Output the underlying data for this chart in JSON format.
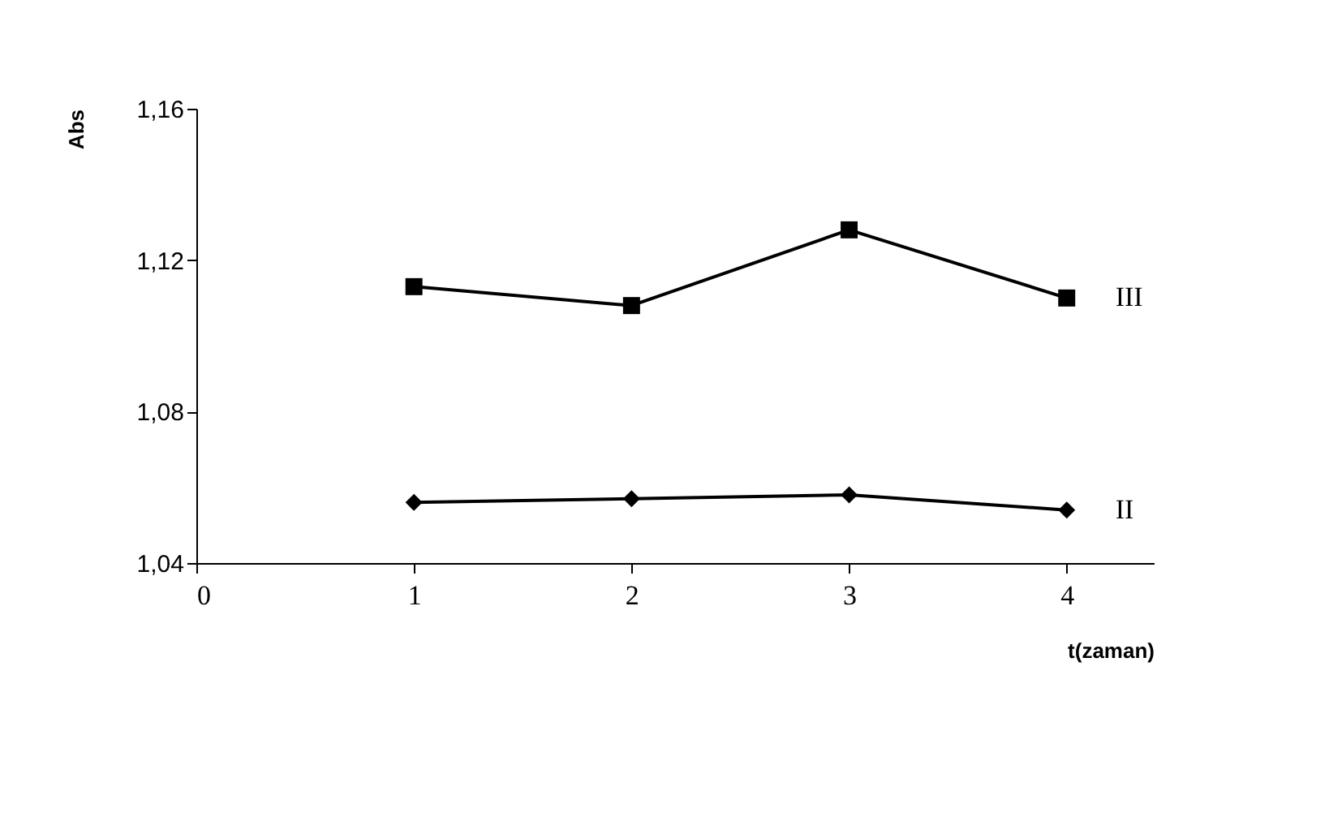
{
  "chart_data": {
    "type": "line",
    "xlabel": "t(zaman)",
    "ylabel": "Abs",
    "x": [
      1,
      2,
      3,
      4
    ],
    "series": [
      {
        "name": "III",
        "color": "#000000",
        "marker": "square",
        "values": [
          1.113,
          1.108,
          1.128,
          1.11
        ]
      },
      {
        "name": "II",
        "color": "#000000",
        "marker": "diamond",
        "values": [
          1.056,
          1.057,
          1.058,
          1.054
        ]
      }
    ],
    "xlim": [
      0,
      4.4
    ],
    "xticks": [
      0,
      1,
      2,
      3,
      4
    ],
    "ylim": [
      1.04,
      1.16
    ],
    "yticks": [
      {
        "value": 1.04,
        "label": "1,04"
      },
      {
        "value": 1.08,
        "label": "1,08"
      },
      {
        "value": 1.12,
        "label": "1,12"
      },
      {
        "value": 1.16,
        "label": "1,16"
      }
    ],
    "grid": false,
    "legend": "right",
    "line_style": "solid"
  }
}
